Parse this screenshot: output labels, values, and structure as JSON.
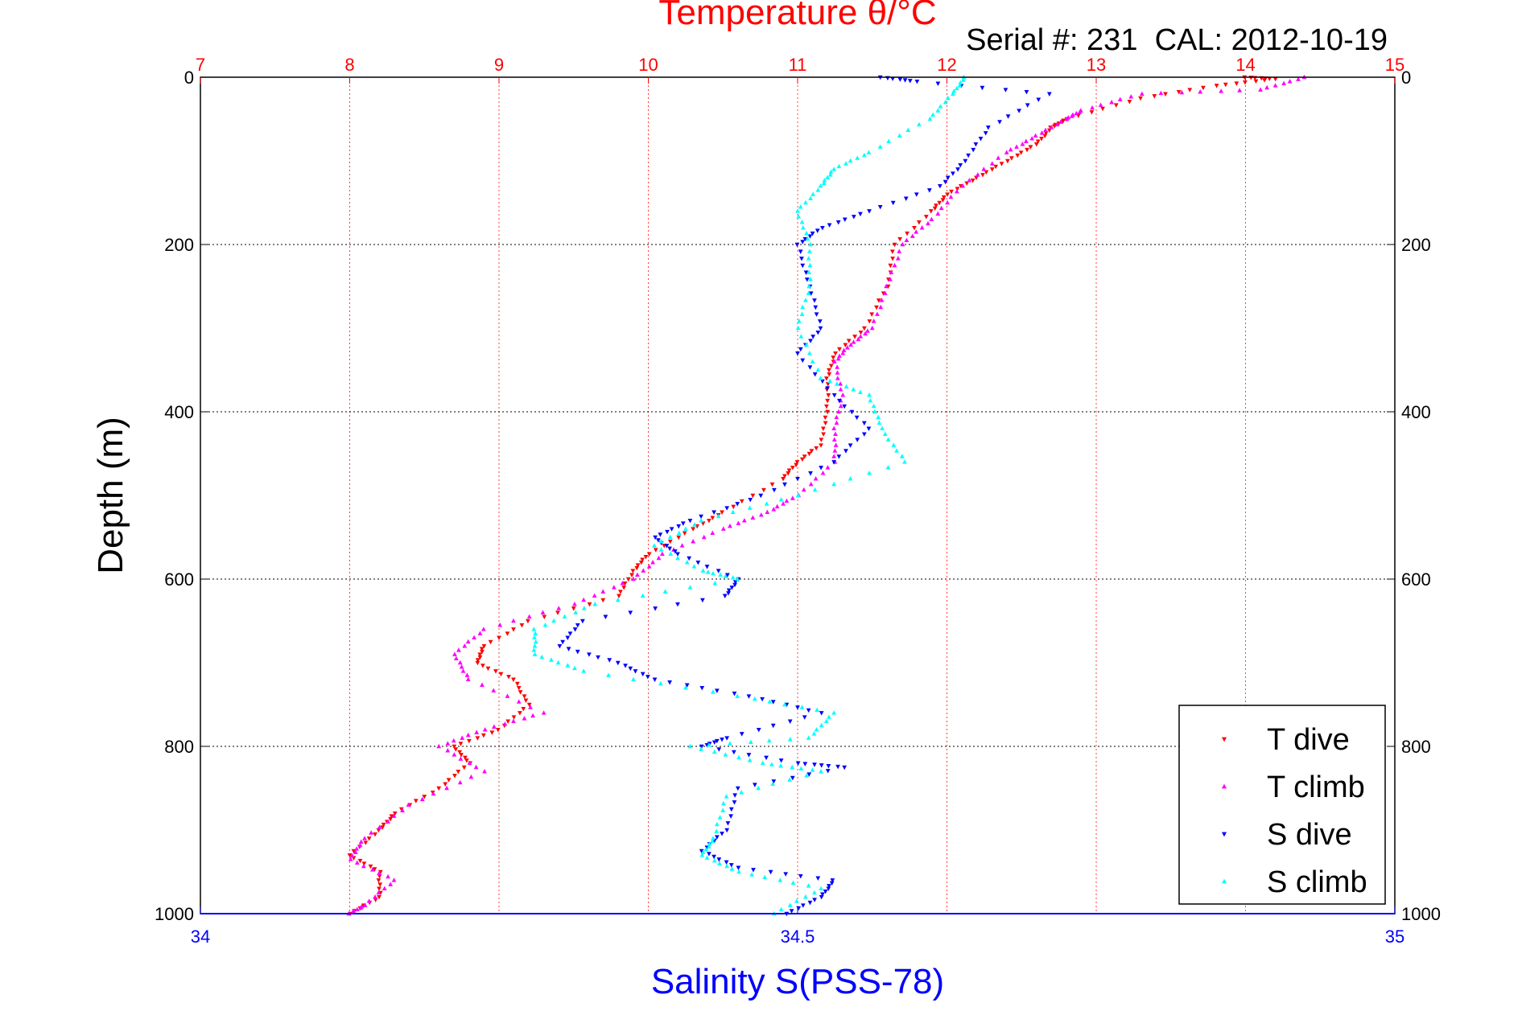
{
  "chart_data": {
    "type": "scatter",
    "title": "Temperature θ/°C",
    "serial_text": "Serial #: 231  CAL: 2012-10-19",
    "ylabel": "Depth (m)",
    "xlabel": "Salinity S(PSS-78)",
    "ylim": [
      0,
      1000
    ],
    "y_reversed": true,
    "y_ticks": [
      "0",
      "200",
      "400",
      "600",
      "800",
      "1000"
    ],
    "temp_axis": {
      "range": [
        7,
        15
      ],
      "ticks": [
        "7",
        "8",
        "9",
        "10",
        "11",
        "12",
        "13",
        "14",
        "15"
      ],
      "color": "#ff0000",
      "grid": true
    },
    "sal_axis": {
      "range": [
        34,
        35
      ],
      "ticks": [
        "34",
        "34.5",
        "35"
      ],
      "color": "#0000ff"
    },
    "depth_grid": true,
    "legend_position": "bottom-right",
    "series": [
      {
        "name": "T dive",
        "axis": "temperature",
        "color": "#ff0000",
        "marker": "triangle-down",
        "points": [
          [
            14.0,
            0
          ],
          [
            14.2,
            2
          ],
          [
            13.8,
            10
          ],
          [
            13.3,
            25
          ],
          [
            12.8,
            50
          ],
          [
            12.7,
            60
          ],
          [
            12.6,
            80
          ],
          [
            12.4,
            100
          ],
          [
            12.2,
            120
          ],
          [
            12.0,
            140
          ],
          [
            11.9,
            160
          ],
          [
            11.65,
            200
          ],
          [
            11.6,
            250
          ],
          [
            11.45,
            300
          ],
          [
            11.25,
            330
          ],
          [
            11.2,
            360
          ],
          [
            11.2,
            400
          ],
          [
            11.15,
            440
          ],
          [
            11.0,
            460
          ],
          [
            10.9,
            480
          ],
          [
            10.5,
            520
          ],
          [
            10.3,
            540
          ],
          [
            10.0,
            570
          ],
          [
            9.9,
            590
          ],
          [
            9.8,
            620
          ],
          [
            9.2,
            650
          ],
          [
            8.9,
            680
          ],
          [
            8.85,
            700
          ],
          [
            9.1,
            720
          ],
          [
            9.2,
            750
          ],
          [
            9.0,
            780
          ],
          [
            8.7,
            800
          ],
          [
            8.8,
            820
          ],
          [
            8.6,
            850
          ],
          [
            8.3,
            880
          ],
          [
            8.2,
            900
          ],
          [
            8.0,
            930
          ],
          [
            8.2,
            950
          ],
          [
            8.2,
            980
          ],
          [
            8.0,
            1000
          ]
        ]
      },
      {
        "name": "T climb",
        "axis": "temperature",
        "color": "#ff00ff",
        "marker": "triangle-up",
        "points": [
          [
            14.4,
            0
          ],
          [
            14.1,
            15
          ],
          [
            13.3,
            20
          ],
          [
            12.9,
            40
          ],
          [
            12.8,
            50
          ],
          [
            12.6,
            70
          ],
          [
            12.4,
            90
          ],
          [
            12.1,
            130
          ],
          [
            11.9,
            170
          ],
          [
            11.7,
            200
          ],
          [
            11.6,
            250
          ],
          [
            11.5,
            300
          ],
          [
            11.35,
            320
          ],
          [
            11.25,
            340
          ],
          [
            11.3,
            380
          ],
          [
            11.25,
            420
          ],
          [
            11.25,
            460
          ],
          [
            11.0,
            500
          ],
          [
            10.8,
            520
          ],
          [
            10.5,
            540
          ],
          [
            10.1,
            570
          ],
          [
            9.9,
            600
          ],
          [
            9.5,
            630
          ],
          [
            8.9,
            660
          ],
          [
            8.7,
            690
          ],
          [
            8.8,
            720
          ],
          [
            9.3,
            760
          ],
          [
            8.9,
            780
          ],
          [
            8.6,
            800
          ],
          [
            8.9,
            830
          ],
          [
            8.4,
            870
          ],
          [
            8.1,
            910
          ],
          [
            8.0,
            935
          ],
          [
            8.3,
            960
          ],
          [
            8.1,
            990
          ],
          [
            8.0,
            1000
          ]
        ]
      },
      {
        "name": "S dive",
        "axis": "salinity",
        "color": "#0000ff",
        "marker": "triangle-down",
        "points": [
          [
            34.57,
            0
          ],
          [
            34.6,
            5
          ],
          [
            34.71,
            20
          ],
          [
            34.66,
            60
          ],
          [
            34.64,
            100
          ],
          [
            34.62,
            130
          ],
          [
            34.56,
            160
          ],
          [
            34.52,
            180
          ],
          [
            34.5,
            200
          ],
          [
            34.51,
            250
          ],
          [
            34.52,
            300
          ],
          [
            34.5,
            330
          ],
          [
            34.53,
            380
          ],
          [
            34.56,
            420
          ],
          [
            34.53,
            460
          ],
          [
            34.47,
            500
          ],
          [
            34.41,
            530
          ],
          [
            34.38,
            550
          ],
          [
            34.4,
            570
          ],
          [
            34.45,
            600
          ],
          [
            34.44,
            620
          ],
          [
            34.32,
            650
          ],
          [
            34.3,
            680
          ],
          [
            34.35,
            700
          ],
          [
            34.38,
            720
          ],
          [
            34.46,
            740
          ],
          [
            34.52,
            760
          ],
          [
            34.44,
            790
          ],
          [
            34.42,
            800
          ],
          [
            34.5,
            820
          ],
          [
            34.54,
            825
          ],
          [
            34.45,
            850
          ],
          [
            34.44,
            900
          ],
          [
            34.42,
            925
          ],
          [
            34.45,
            945
          ],
          [
            34.53,
            960
          ],
          [
            34.52,
            980
          ],
          [
            34.49,
            1000
          ]
        ]
      },
      {
        "name": "S climb",
        "axis": "salinity",
        "color": "#00ffff",
        "marker": "triangle-up",
        "points": [
          [
            34.64,
            0
          ],
          [
            34.63,
            20
          ],
          [
            34.61,
            50
          ],
          [
            34.56,
            90
          ],
          [
            34.53,
            110
          ],
          [
            34.52,
            130
          ],
          [
            34.5,
            160
          ],
          [
            34.51,
            200
          ],
          [
            34.51,
            250
          ],
          [
            34.5,
            300
          ],
          [
            34.52,
            360
          ],
          [
            34.56,
            380
          ],
          [
            34.57,
            420
          ],
          [
            34.59,
            460
          ],
          [
            34.5,
            500
          ],
          [
            34.42,
            530
          ],
          [
            34.38,
            560
          ],
          [
            34.42,
            590
          ],
          [
            34.45,
            600
          ],
          [
            34.33,
            630
          ],
          [
            34.28,
            660
          ],
          [
            34.28,
            690
          ],
          [
            34.32,
            710
          ],
          [
            34.45,
            740
          ],
          [
            34.53,
            760
          ],
          [
            34.51,
            790
          ],
          [
            34.41,
            800
          ],
          [
            34.47,
            820
          ],
          [
            34.52,
            830
          ],
          [
            34.44,
            860
          ],
          [
            34.43,
            910
          ],
          [
            34.42,
            930
          ],
          [
            34.45,
            950
          ],
          [
            34.52,
            970
          ],
          [
            34.48,
            1000
          ]
        ]
      }
    ]
  }
}
